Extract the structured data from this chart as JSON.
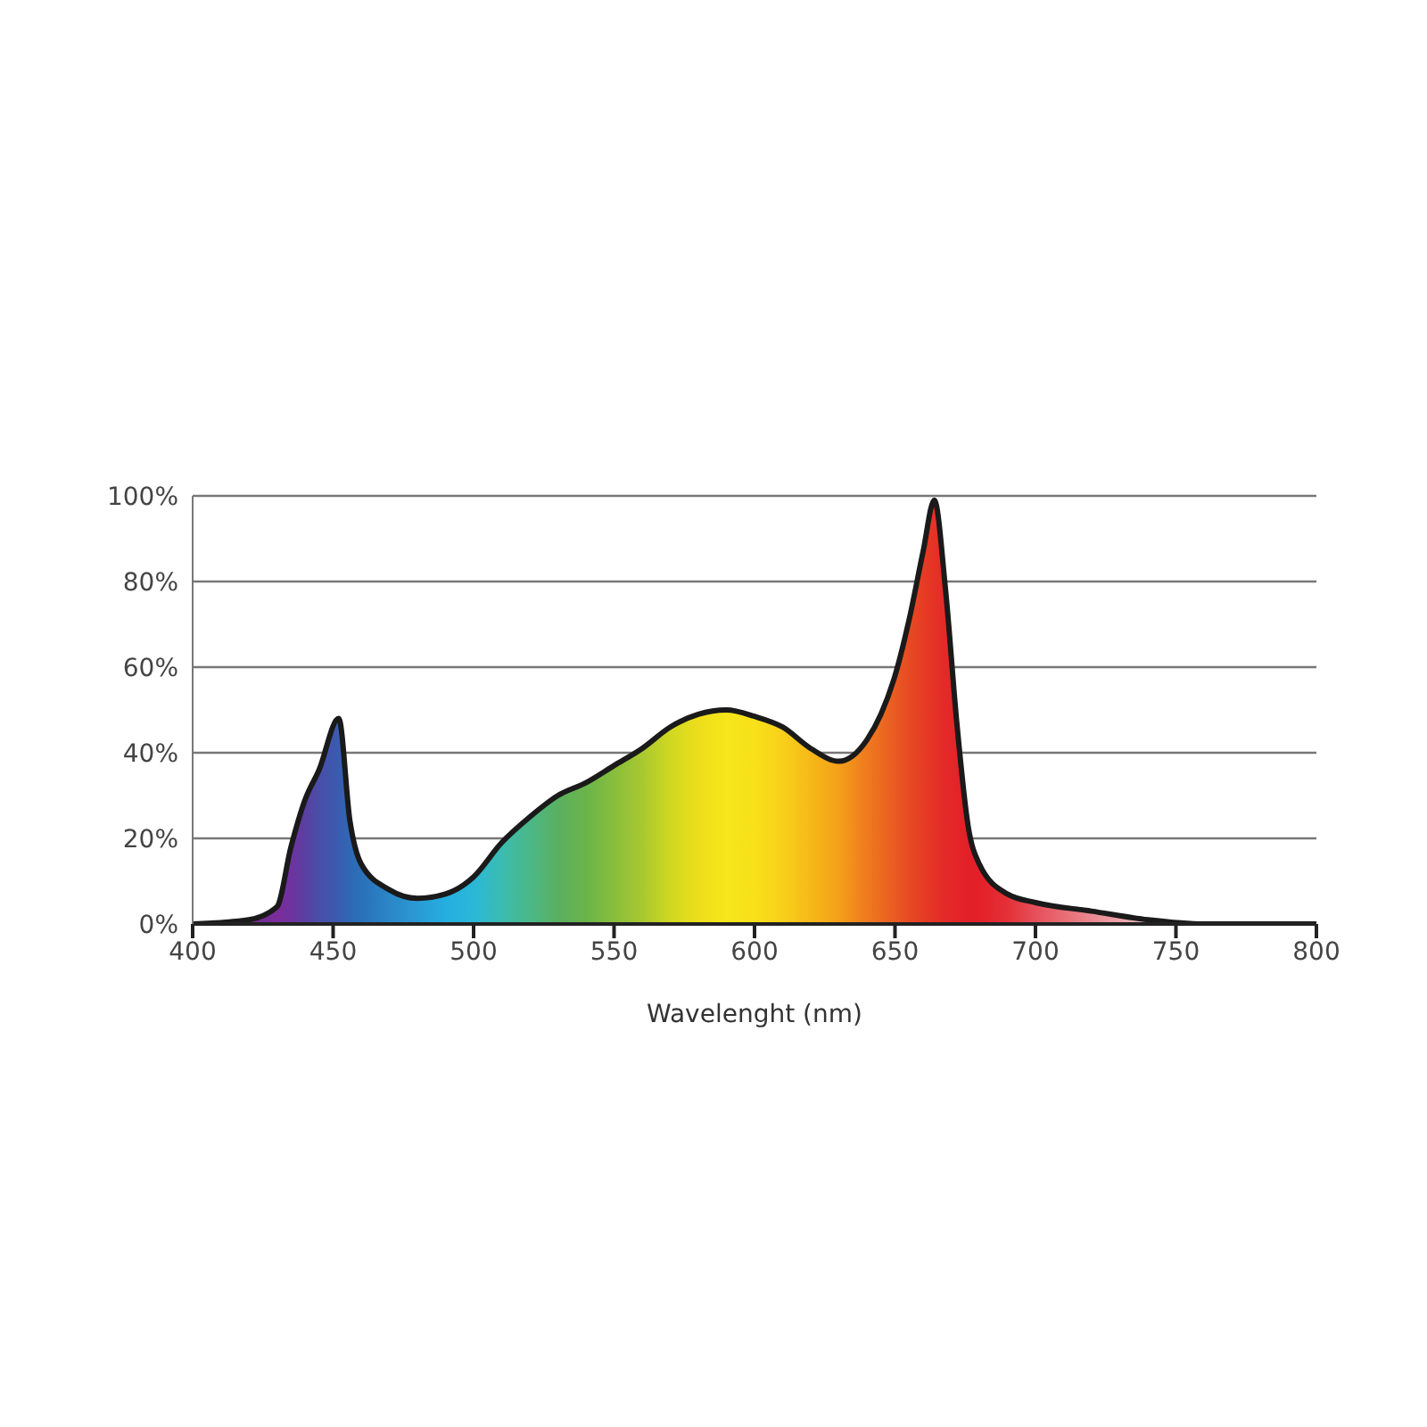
{
  "chart_data": {
    "type": "area",
    "xlabel": "Wavelenght (nm)",
    "xlim": [
      400,
      800
    ],
    "xticks": [
      400,
      450,
      500,
      550,
      600,
      650,
      700,
      750,
      800
    ],
    "ylim": [
      0,
      100
    ],
    "yticks": [
      {
        "value": 0,
        "label": "0%"
      },
      {
        "value": 20,
        "label": "20%"
      },
      {
        "value": 40,
        "label": "40%"
      },
      {
        "value": 60,
        "label": "60%"
      },
      {
        "value": 80,
        "label": "80%"
      },
      {
        "value": 100,
        "label": "100%"
      }
    ],
    "grid": "y",
    "legend": false,
    "series": [
      {
        "color": "#1a1a1a",
        "x": [
          400,
          420,
          430,
          435,
          440,
          445,
          452,
          456,
          460,
          470,
          480,
          490,
          500,
          510,
          520,
          530,
          540,
          550,
          560,
          570,
          580,
          590,
          600,
          610,
          620,
          630,
          640,
          645,
          650,
          655,
          660,
          664,
          668,
          672,
          676,
          680,
          690,
          700,
          720,
          740,
          760,
          800
        ],
        "values": [
          0,
          1,
          4,
          18,
          29,
          36,
          48,
          24,
          14,
          8,
          6,
          7,
          11,
          19,
          25,
          30,
          33,
          37,
          41,
          46,
          49,
          50,
          48.5,
          46,
          41,
          38,
          43,
          49,
          58,
          71,
          87,
          99,
          78,
          47,
          23,
          14,
          7,
          5,
          3,
          1,
          0,
          0
        ],
        "colors": [
          "#5a3a6a",
          "#6a2c8e",
          "#7b2d99",
          "#6e33a0",
          "#5a3fa0",
          "#4a4ea8",
          "#3a5cb0",
          "#2f68b6",
          "#2a70b8",
          "#2b86c8",
          "#2a9ad4",
          "#25aee0",
          "#2ab8d8",
          "#3bbcb0",
          "#4bb888",
          "#5ab060",
          "#6ab44a",
          "#88be3c",
          "#a8c830",
          "#d0d820",
          "#ecde1c",
          "#f6e61a",
          "#f8e01a",
          "#f8d01a",
          "#f6b818",
          "#f5a01a",
          "#ef7a1e",
          "#ec6a20",
          "#e95a22",
          "#e74a23",
          "#e63c24",
          "#e53226",
          "#e42a28",
          "#e32428",
          "#e32028",
          "#e32028",
          "#e43038",
          "#e6505a",
          "#ea8890",
          "#f0c0c4",
          "#f8e8ea",
          "#ffffff"
        ]
      }
    ]
  }
}
